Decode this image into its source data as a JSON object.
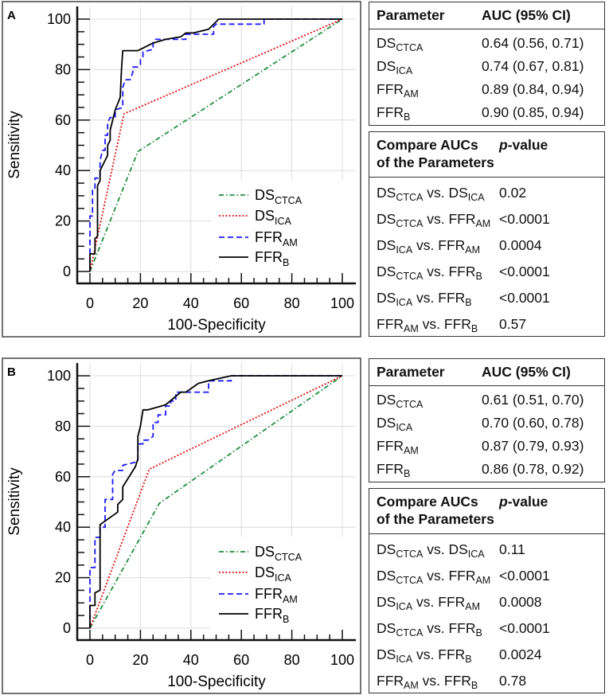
{
  "chart_data": [
    {
      "panel_label": "A",
      "type": "line",
      "xlabel": "100-Specificity",
      "ylabel": "Sensitivity",
      "xlim": [
        0,
        100
      ],
      "ylim": [
        0,
        100
      ],
      "xticks": [
        "0",
        "20",
        "40",
        "60",
        "80",
        "100"
      ],
      "yticks": [
        "0",
        "20",
        "40",
        "60",
        "80",
        "100"
      ],
      "grid": true,
      "legend_position": "bottom-right",
      "series": [
        {
          "name": "DS",
          "sub": "CTCA",
          "color": "#1f8f3f",
          "style": "dashdot",
          "points": [
            [
              0,
              0
            ],
            [
              19,
              47.5
            ],
            [
              100,
              100
            ]
          ]
        },
        {
          "name": "DS",
          "sub": "ICA",
          "color": "#e01010",
          "style": "dotted",
          "points": [
            [
              0,
              0
            ],
            [
              13.5,
              62.5
            ],
            [
              100,
              100
            ]
          ]
        },
        {
          "name": "FFR",
          "sub": "AM",
          "color": "#1a1aff",
          "style": "dashed",
          "points": [
            [
              0,
              0
            ],
            [
              0,
              8
            ],
            [
              0,
              22
            ],
            [
              1,
              22
            ],
            [
              1,
              33
            ],
            [
              2,
              33
            ],
            [
              2,
              37
            ],
            [
              4,
              37
            ],
            [
              4,
              44
            ],
            [
              5,
              48
            ],
            [
              6,
              48
            ],
            [
              6,
              54
            ],
            [
              7,
              54
            ],
            [
              7,
              59
            ],
            [
              8,
              61
            ],
            [
              10,
              61
            ],
            [
              10,
              64
            ],
            [
              13,
              65
            ],
            [
              13,
              73
            ],
            [
              14,
              76
            ],
            [
              16,
              76
            ],
            [
              17,
              79
            ],
            [
              17,
              81
            ],
            [
              19,
              81
            ],
            [
              20,
              82
            ],
            [
              20,
              84
            ],
            [
              21,
              85
            ],
            [
              21,
              87
            ],
            [
              25,
              88
            ],
            [
              25,
              91
            ],
            [
              26,
              92
            ],
            [
              31,
              92
            ],
            [
              38,
              92
            ],
            [
              38,
              94
            ],
            [
              49,
              94
            ],
            [
              49,
              97
            ],
            [
              50,
              98
            ],
            [
              69,
              98
            ],
            [
              69,
              100
            ],
            [
              100,
              100
            ]
          ]
        },
        {
          "name": "FFR",
          "sub": "B",
          "color": "#000000",
          "style": "solid",
          "points": [
            [
              0,
              0
            ],
            [
              0,
              7
            ],
            [
              2,
              7
            ],
            [
              2,
              13
            ],
            [
              3,
              14
            ],
            [
              3,
              34
            ],
            [
              4,
              36
            ],
            [
              4,
              40
            ],
            [
              6,
              44
            ],
            [
              7,
              46
            ],
            [
              7,
              50
            ],
            [
              8,
              52
            ],
            [
              8,
              56
            ],
            [
              10,
              64
            ],
            [
              12,
              69
            ],
            [
              12.5,
              80
            ],
            [
              13,
              87.5
            ],
            [
              19,
              87.5
            ],
            [
              25,
              90.5
            ],
            [
              30,
              92
            ],
            [
              36,
              93
            ],
            [
              38,
              94.5
            ],
            [
              41,
              94.5
            ],
            [
              47,
              96
            ],
            [
              50,
              99
            ],
            [
              51,
              100
            ],
            [
              100,
              100
            ]
          ]
        }
      ],
      "auc_table": {
        "headers": [
          "Parameter",
          "AUC (95% CI)"
        ],
        "rows": [
          {
            "name": "DS",
            "sub": "CTCA",
            "auc": "0.64 (0.56, 0.71)"
          },
          {
            "name": "DS",
            "sub": "ICA",
            "auc": "0.74 (0.67, 0.81)"
          },
          {
            "name": "FFR",
            "sub": "AM",
            "auc": "0.89 (0.84, 0.94)"
          },
          {
            "name": "FFR",
            "sub": "B",
            "auc": "0.90 (0.85, 0.94)"
          }
        ]
      },
      "comparison_table": {
        "header_line1": "Compare AUCs",
        "header_line2": "of the Parameters",
        "pvalue_header_italic": "p",
        "pvalue_header_rest": "-value",
        "vs": "vs.",
        "rows": [
          {
            "a": "DS",
            "a_sub": "CTCA",
            "b": "DS",
            "b_sub": "ICA",
            "p": "0.02"
          },
          {
            "a": "DS",
            "a_sub": "CTCA",
            "b": "FFR",
            "b_sub": "AM",
            "p": "<0.0001"
          },
          {
            "a": "DS",
            "a_sub": "ICA",
            "b": "FFR",
            "b_sub": "AM",
            "p": "0.0004"
          },
          {
            "a": "DS",
            "a_sub": "CTCA",
            "b": "FFR",
            "b_sub": "B",
            "p": "<0.0001"
          },
          {
            "a": "DS",
            "a_sub": "ICA",
            "b": "FFR",
            "b_sub": "B",
            "p": "<0.0001"
          },
          {
            "a": "FFR",
            "a_sub": "AM",
            "b": "FFR",
            "b_sub": "B",
            "p": "0.57"
          }
        ]
      }
    },
    {
      "panel_label": "B",
      "type": "line",
      "xlabel": "100-Specificity",
      "ylabel": "Sensitivity",
      "xlim": [
        0,
        100
      ],
      "ylim": [
        0,
        100
      ],
      "xticks": [
        "0",
        "20",
        "40",
        "60",
        "80",
        "100"
      ],
      "yticks": [
        "0",
        "20",
        "40",
        "60",
        "80",
        "100"
      ],
      "grid": true,
      "legend_position": "bottom-right",
      "series": [
        {
          "name": "DS",
          "sub": "CTCA",
          "color": "#1f8f3f",
          "style": "dashdot",
          "points": [
            [
              0,
              0
            ],
            [
              27.5,
              49.5
            ],
            [
              100,
              100
            ]
          ]
        },
        {
          "name": "DS",
          "sub": "ICA",
          "color": "#e01010",
          "style": "dotted",
          "points": [
            [
              0,
              0
            ],
            [
              23.5,
              63
            ],
            [
              100,
              100
            ]
          ]
        },
        {
          "name": "FFR",
          "sub": "AM",
          "color": "#1a1aff",
          "style": "dashed",
          "points": [
            [
              0,
              0
            ],
            [
              0,
              10
            ],
            [
              0,
              24
            ],
            [
              2,
              24
            ],
            [
              2,
              36
            ],
            [
              4,
              36
            ],
            [
              4,
              40
            ],
            [
              6,
              40
            ],
            [
              6,
              51
            ],
            [
              9,
              51
            ],
            [
              9,
              61
            ],
            [
              10,
              62.5
            ],
            [
              13,
              62.5
            ],
            [
              13,
              64.5
            ],
            [
              19,
              66
            ],
            [
              19,
              73
            ],
            [
              21,
              73
            ],
            [
              21,
              74.5
            ],
            [
              23,
              74.5
            ],
            [
              25,
              76
            ],
            [
              25,
              81.5
            ],
            [
              27,
              81.5
            ],
            [
              27,
              84.5
            ],
            [
              30,
              84.5
            ],
            [
              30,
              88
            ],
            [
              32,
              88
            ],
            [
              32,
              90
            ],
            [
              34,
              90
            ],
            [
              34,
              93.5
            ],
            [
              38,
              93.5
            ],
            [
              47,
              93.5
            ],
            [
              47,
              98
            ],
            [
              56,
              98
            ],
            [
              56,
              100
            ],
            [
              100,
              100
            ]
          ]
        },
        {
          "name": "FFR",
          "sub": "B",
          "color": "#000000",
          "style": "solid",
          "points": [
            [
              0,
              0
            ],
            [
              0,
              9
            ],
            [
              2,
              9
            ],
            [
              2,
              14
            ],
            [
              4,
              15
            ],
            [
              4,
              41
            ],
            [
              11,
              46
            ],
            [
              11,
              49
            ],
            [
              13,
              51
            ],
            [
              13,
              56
            ],
            [
              18,
              64
            ],
            [
              19,
              67
            ],
            [
              19,
              76
            ],
            [
              20,
              80
            ],
            [
              21,
              86.5
            ],
            [
              23,
              86.5
            ],
            [
              30,
              88.5
            ],
            [
              33,
              91
            ],
            [
              36,
              93.5
            ],
            [
              38,
              93.5
            ],
            [
              43,
              97
            ],
            [
              47,
              98
            ],
            [
              56,
              100
            ],
            [
              100,
              100
            ]
          ]
        }
      ],
      "auc_table": {
        "headers": [
          "Parameter",
          "AUC (95% CI)"
        ],
        "rows": [
          {
            "name": "DS",
            "sub": "CTCA",
            "auc": "0.61 (0.51, 0.70)"
          },
          {
            "name": "DS",
            "sub": "ICA",
            "auc": "0.70 (0.60, 0.78)"
          },
          {
            "name": "FFR",
            "sub": "AM",
            "auc": "0.87 (0.79, 0.93)"
          },
          {
            "name": "FFR",
            "sub": "B",
            "auc": "0.86 (0.78, 0.92)"
          }
        ]
      },
      "comparison_table": {
        "header_line1": "Compare AUCs",
        "header_line2": "of the Parameters",
        "pvalue_header_italic": "p",
        "pvalue_header_rest": "-value",
        "vs": "vs.",
        "rows": [
          {
            "a": "DS",
            "a_sub": "CTCA",
            "b": "DS",
            "b_sub": "ICA",
            "p": "0.11"
          },
          {
            "a": "DS",
            "a_sub": "CTCA",
            "b": "FFR",
            "b_sub": "AM",
            "p": "<0.0001"
          },
          {
            "a": "DS",
            "a_sub": "ICA",
            "b": "FFR",
            "b_sub": "AM",
            "p": "0.0008"
          },
          {
            "a": "DS",
            "a_sub": "CTCA",
            "b": "FFR",
            "b_sub": "B",
            "p": "<0.0001"
          },
          {
            "a": "DS",
            "a_sub": "ICA",
            "b": "FFR",
            "b_sub": "B",
            "p": "0.0024"
          },
          {
            "a": "FFR",
            "a_sub": "AM",
            "b": "FFR",
            "b_sub": "B",
            "p": "0.78"
          }
        ]
      }
    }
  ]
}
